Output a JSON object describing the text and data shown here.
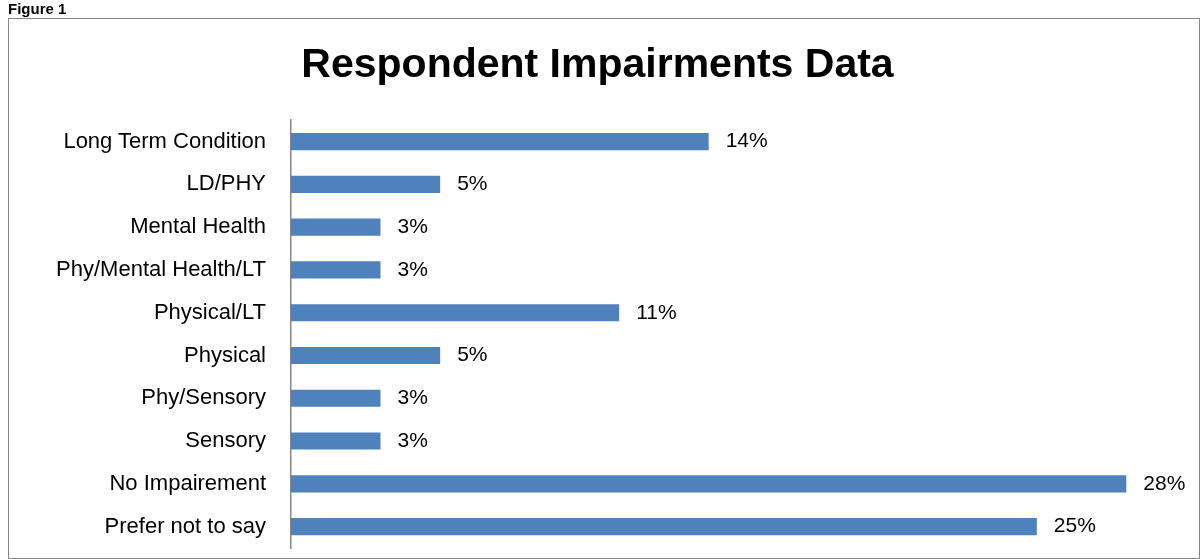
{
  "chart_data": {
    "type": "bar",
    "orientation": "horizontal",
    "title": "Respondent Impairments Data",
    "annotations": [
      "Figure 1"
    ],
    "categories": [
      "Long Term Condition",
      "LD/PHY",
      "Mental Health",
      "Phy/Mental Health/LT",
      "Physical/LT",
      "Physical",
      "Phy/Sensory",
      "Sensory",
      "No Impairement",
      "Prefer not to say"
    ],
    "values": [
      14,
      5,
      3,
      3,
      11,
      5,
      3,
      3,
      28,
      25
    ],
    "value_labels": [
      "14%",
      "5%",
      "3%",
      "3%",
      "11%",
      "5%",
      "3%",
      "3%",
      "28%",
      "25%"
    ],
    "color": "#4f81bd",
    "tick_labels": "y"
  }
}
